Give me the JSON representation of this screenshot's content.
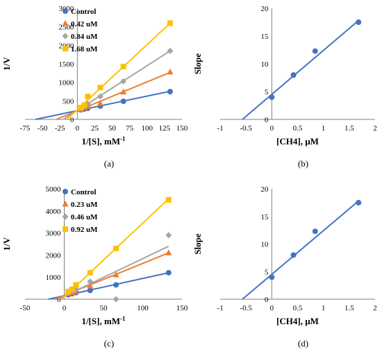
{
  "chart_data": [
    {
      "id": "a",
      "type": "scatter",
      "caption": "(a)",
      "xlabel": "1/[S], mM",
      "xlabel_sup": "-1",
      "ylabel": "1/V",
      "xlim": [
        -75,
        150
      ],
      "ylim": [
        0,
        3000
      ],
      "xticks": [
        -75,
        -50,
        -25,
        0,
        25,
        50,
        75,
        100,
        125,
        150
      ],
      "yticks": [
        0,
        500,
        1000,
        1500,
        2000,
        2500,
        3000
      ],
      "grid": false,
      "legend": "top-left",
      "series": [
        {
          "name": "Control",
          "color": "#4472C4",
          "marker": "circle",
          "points": [
            [
              5,
              260
            ],
            [
              10,
              280
            ],
            [
              15,
              300
            ],
            [
              33,
              360
            ],
            [
              66,
              490
            ],
            [
              133,
              750
            ]
          ],
          "line": [
            [
              -60,
              0
            ],
            [
              133,
              760
            ]
          ]
        },
        {
          "name": "0.42 uM",
          "color": "#ED7D31",
          "marker": "triangle",
          "points": [
            [
              5,
              270
            ],
            [
              10,
              310
            ],
            [
              15,
              350
            ],
            [
              33,
              430
            ],
            [
              66,
              740
            ],
            [
              133,
              1280
            ]
          ],
          "line": [
            [
              -30,
              0
            ],
            [
              133,
              1270
            ]
          ]
        },
        {
          "name": "0.84 uM",
          "color": "#A5A5A5",
          "marker": "diamond",
          "points": [
            [
              5,
              300
            ],
            [
              10,
              350
            ],
            [
              15,
              420
            ],
            [
              33,
              620
            ],
            [
              66,
              1030
            ],
            [
              133,
              1850
            ]
          ],
          "line": [
            [
              -20,
              0
            ],
            [
              133,
              1850
            ]
          ]
        },
        {
          "name": "1.68 uM",
          "color": "#FFC000",
          "marker": "square",
          "points": [
            [
              5,
              320
            ],
            [
              10,
              380
            ],
            [
              15,
              620
            ],
            [
              33,
              860
            ],
            [
              66,
              1430
            ],
            [
              133,
              2600
            ]
          ],
          "line": [
            [
              -15,
              0
            ],
            [
              133,
              2600
            ]
          ]
        }
      ]
    },
    {
      "id": "b",
      "type": "scatter",
      "caption": "(b)",
      "xlabel": "[CH4], µM",
      "ylabel": "Slope",
      "xlim": [
        -1,
        2
      ],
      "ylim": [
        0,
        20
      ],
      "xticks": [
        -1,
        -0.5,
        0,
        0.5,
        1,
        1.5,
        2
      ],
      "yticks": [
        0,
        5,
        10,
        15,
        20
      ],
      "grid": false,
      "series": [
        {
          "color": "#4472C4",
          "marker": "circle",
          "points": [
            [
              0,
              4.0
            ],
            [
              0.42,
              8.0
            ],
            [
              0.84,
              12.3
            ],
            [
              1.68,
              17.5
            ]
          ],
          "line": [
            [
              -0.57,
              0
            ],
            [
              1.68,
              17.8
            ]
          ]
        }
      ]
    },
    {
      "id": "c",
      "type": "scatter",
      "caption": "(c)",
      "xlabel": "1/[S], mM",
      "xlabel_sup": "-1",
      "ylabel": "1/V",
      "xlim": [
        -50,
        150
      ],
      "ylim": [
        0,
        5000
      ],
      "xticks": [
        -50,
        0,
        50,
        100,
        150
      ],
      "yticks": [
        0,
        1000,
        2000,
        3000,
        4000,
        5000
      ],
      "grid": false,
      "legend": "top-left",
      "series": [
        {
          "name": "Control",
          "color": "#4472C4",
          "marker": "circle",
          "points": [
            [
              5,
              200
            ],
            [
              10,
              250
            ],
            [
              15,
              300
            ],
            [
              33,
              400
            ],
            [
              66,
              650
            ],
            [
              133,
              1200
            ]
          ],
          "line": [
            [
              -20,
              0
            ],
            [
              133,
              1200
            ]
          ]
        },
        {
          "name": "0.23 uM",
          "color": "#ED7D31",
          "marker": "triangle",
          "points": [
            [
              5,
              250
            ],
            [
              10,
              300
            ],
            [
              15,
              350
            ],
            [
              33,
              600
            ],
            [
              66,
              1100
            ],
            [
              133,
              2100
            ]
          ],
          "line": [
            [
              -12,
              0
            ],
            [
              133,
              2100
            ]
          ]
        },
        {
          "name": "0.46 uM",
          "color": "#A5A5A5",
          "marker": "diamond",
          "points": [
            [
              5,
              300
            ],
            [
              10,
              350
            ],
            [
              15,
              450
            ],
            [
              33,
              800
            ],
            [
              66,
              0
            ],
            [
              133,
              2900
            ]
          ],
          "line": [
            [
              -8,
              0
            ],
            [
              133,
              2400
            ]
          ]
        },
        {
          "name": "0.92 uM",
          "color": "#FFC000",
          "marker": "square",
          "points": [
            [
              5,
              350
            ],
            [
              10,
              450
            ],
            [
              15,
              650
            ],
            [
              33,
              1200
            ],
            [
              66,
              2300
            ],
            [
              133,
              4500
            ]
          ],
          "line": [
            [
              -3,
              0
            ],
            [
              133,
              4550
            ]
          ]
        }
      ]
    },
    {
      "id": "d",
      "type": "scatter",
      "caption": "(d)",
      "xlabel": "[CH4], µM",
      "ylabel": "Slope",
      "xlim": [
        -1,
        2
      ],
      "ylim": [
        0,
        20
      ],
      "xticks": [
        -1,
        -0.5,
        0,
        0.5,
        1,
        1.5,
        2
      ],
      "yticks": [
        0,
        5,
        10,
        15,
        20
      ],
      "grid": false,
      "series": [
        {
          "color": "#4472C4",
          "marker": "circle",
          "points": [
            [
              0,
              4.0
            ],
            [
              0.42,
              8.0
            ],
            [
              0.84,
              12.3
            ],
            [
              1.68,
              17.5
            ]
          ],
          "line": [
            [
              -0.57,
              0
            ],
            [
              1.68,
              17.8
            ]
          ]
        }
      ]
    }
  ]
}
